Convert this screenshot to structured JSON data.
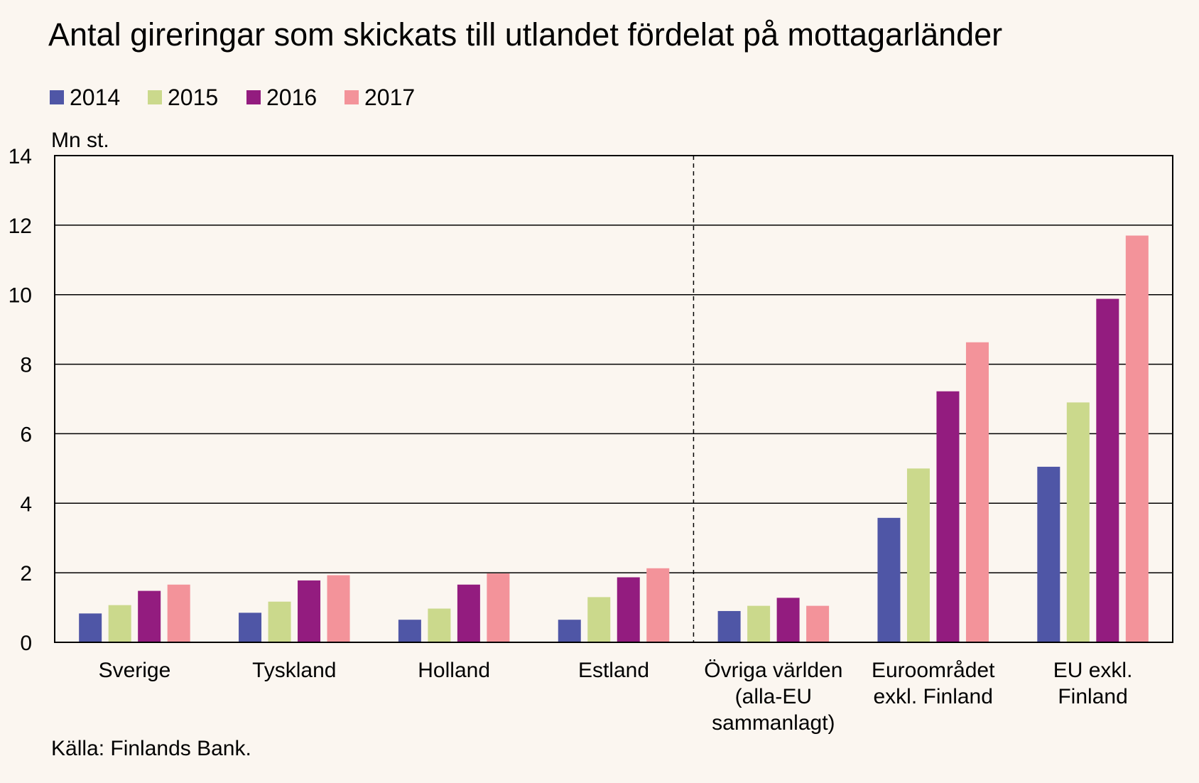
{
  "chart_data": {
    "type": "bar",
    "title": "Antal gireringar som skickats till utlandet fördelat på mottagarländer",
    "ylabel": "Mn st.",
    "ylim": [
      0,
      14
    ],
    "yticks": [
      0,
      2,
      4,
      6,
      8,
      10,
      12,
      14
    ],
    "grid": true,
    "legend_position": "top-left",
    "categories": [
      [
        "Sverige"
      ],
      [
        "Tyskland"
      ],
      [
        "Holland"
      ],
      [
        "Estland"
      ],
      [
        "Övriga världen",
        "(alla-EU",
        "sammanlagt)"
      ],
      [
        "Euroområdet",
        "exkl. Finland"
      ],
      [
        "EU exkl.",
        "Finland"
      ]
    ],
    "series": [
      {
        "name": "2014",
        "color": "#4f56a6",
        "values": [
          0.83,
          0.85,
          0.65,
          0.65,
          0.9,
          3.58,
          5.05
        ]
      },
      {
        "name": "2015",
        "color": "#cbd98c",
        "values": [
          1.07,
          1.17,
          0.97,
          1.3,
          1.05,
          5.0,
          6.9
        ]
      },
      {
        "name": "2016",
        "color": "#931c7f",
        "values": [
          1.48,
          1.78,
          1.66,
          1.87,
          1.28,
          7.22,
          9.88
        ]
      },
      {
        "name": "2017",
        "color": "#f3939a",
        "values": [
          1.66,
          1.93,
          1.98,
          2.13,
          1.05,
          8.63,
          11.7
        ]
      }
    ],
    "separator_after_category": 4,
    "source": "Källa: Finlands Bank."
  }
}
